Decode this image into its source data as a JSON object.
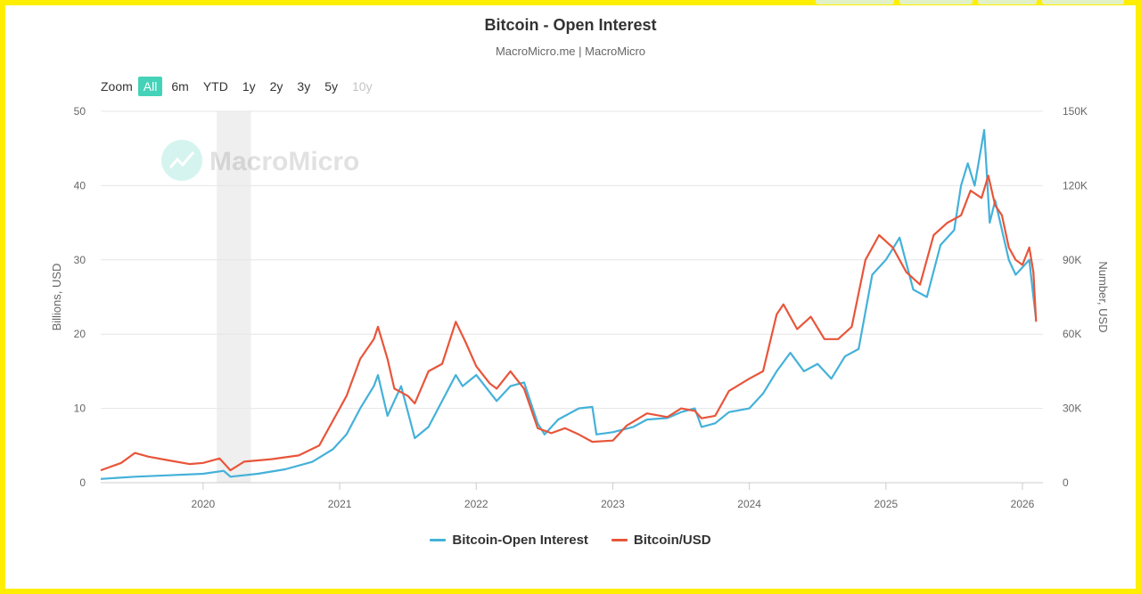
{
  "chart_data": {
    "type": "line",
    "title": "Bitcoin - Open Interest",
    "subtitle": "MacroMicro.me | MacroMicro",
    "watermark": "MacroMicro",
    "zoom": {
      "label": "Zoom",
      "buttons": [
        "All",
        "6m",
        "YTD",
        "1y",
        "2y",
        "3y",
        "5y",
        "10y"
      ],
      "active": "All",
      "disabled": [
        "10y"
      ]
    },
    "x_ticks": [
      "2020",
      "2021",
      "2022",
      "2023",
      "2024",
      "2025",
      "2026"
    ],
    "xlim": [
      2019.25,
      2026.15
    ],
    "y_left": {
      "label": "Billions, USD",
      "lim": [
        0,
        50
      ],
      "ticks": [
        "0",
        "10",
        "20",
        "30",
        "40",
        "50"
      ]
    },
    "y_right": {
      "label": "Number, USD",
      "lim": [
        0,
        150000
      ],
      "ticks": [
        "0",
        "30K",
        "60K",
        "90K",
        "120K",
        "150K"
      ]
    },
    "shaded_region": [
      2020.1,
      2020.35
    ],
    "series": [
      {
        "name": "Bitcoin-Open Interest",
        "axis": "left",
        "color": "#44b1d9",
        "points": [
          [
            2019.25,
            0.5
          ],
          [
            2019.5,
            0.8
          ],
          [
            2019.75,
            1.0
          ],
          [
            2020.0,
            1.2
          ],
          [
            2020.15,
            1.6
          ],
          [
            2020.2,
            0.8
          ],
          [
            2020.4,
            1.2
          ],
          [
            2020.6,
            1.8
          ],
          [
            2020.8,
            2.8
          ],
          [
            2020.95,
            4.5
          ],
          [
            2021.05,
            6.5
          ],
          [
            2021.15,
            10.0
          ],
          [
            2021.25,
            13.0
          ],
          [
            2021.28,
            14.5
          ],
          [
            2021.35,
            9.0
          ],
          [
            2021.45,
            13.0
          ],
          [
            2021.55,
            6.0
          ],
          [
            2021.65,
            7.5
          ],
          [
            2021.75,
            11.0
          ],
          [
            2021.85,
            14.5
          ],
          [
            2021.9,
            13.0
          ],
          [
            2022.0,
            14.5
          ],
          [
            2022.15,
            11.0
          ],
          [
            2022.25,
            13.0
          ],
          [
            2022.35,
            13.5
          ],
          [
            2022.45,
            8.0
          ],
          [
            2022.5,
            6.5
          ],
          [
            2022.6,
            8.5
          ],
          [
            2022.75,
            10.0
          ],
          [
            2022.85,
            10.2
          ],
          [
            2022.88,
            6.5
          ],
          [
            2023.0,
            6.8
          ],
          [
            2023.15,
            7.5
          ],
          [
            2023.25,
            8.5
          ],
          [
            2023.4,
            8.7
          ],
          [
            2023.5,
            9.5
          ],
          [
            2023.6,
            10.0
          ],
          [
            2023.65,
            7.5
          ],
          [
            2023.75,
            8.0
          ],
          [
            2023.85,
            9.5
          ],
          [
            2024.0,
            10.0
          ],
          [
            2024.1,
            12.0
          ],
          [
            2024.2,
            15.0
          ],
          [
            2024.3,
            17.5
          ],
          [
            2024.4,
            15.0
          ],
          [
            2024.5,
            16.0
          ],
          [
            2024.6,
            14.0
          ],
          [
            2024.7,
            17.0
          ],
          [
            2024.8,
            18.0
          ],
          [
            2024.9,
            28.0
          ],
          [
            2025.0,
            30.0
          ],
          [
            2025.1,
            33.0
          ],
          [
            2025.2,
            26.0
          ],
          [
            2025.3,
            25.0
          ],
          [
            2025.4,
            32.0
          ],
          [
            2025.5,
            34.0
          ],
          [
            2025.55,
            40.0
          ],
          [
            2025.6,
            43.0
          ],
          [
            2025.65,
            40.0
          ],
          [
            2025.72,
            47.5
          ],
          [
            2025.76,
            35.0
          ],
          [
            2025.8,
            38.0
          ],
          [
            2025.9,
            30.0
          ],
          [
            2025.95,
            28.0
          ],
          [
            2026.05,
            30.0
          ],
          [
            2026.08,
            25.0
          ],
          [
            2026.1,
            22.0
          ]
        ]
      },
      {
        "name": "Bitcoin/USD",
        "axis": "right",
        "color": "#e8553a",
        "points": [
          [
            2019.25,
            5000
          ],
          [
            2019.4,
            8000
          ],
          [
            2019.5,
            12000
          ],
          [
            2019.6,
            10500
          ],
          [
            2019.75,
            9000
          ],
          [
            2019.9,
            7500
          ],
          [
            2020.0,
            8000
          ],
          [
            2020.12,
            9800
          ],
          [
            2020.2,
            5000
          ],
          [
            2020.3,
            8500
          ],
          [
            2020.5,
            9500
          ],
          [
            2020.7,
            11000
          ],
          [
            2020.85,
            15000
          ],
          [
            2020.95,
            25000
          ],
          [
            2021.05,
            35000
          ],
          [
            2021.15,
            50000
          ],
          [
            2021.25,
            58000
          ],
          [
            2021.28,
            63000
          ],
          [
            2021.35,
            50000
          ],
          [
            2021.4,
            38000
          ],
          [
            2021.5,
            35000
          ],
          [
            2021.55,
            32000
          ],
          [
            2021.65,
            45000
          ],
          [
            2021.75,
            48000
          ],
          [
            2021.85,
            65000
          ],
          [
            2021.92,
            57000
          ],
          [
            2022.0,
            47000
          ],
          [
            2022.1,
            40000
          ],
          [
            2022.15,
            38000
          ],
          [
            2022.25,
            45000
          ],
          [
            2022.35,
            38000
          ],
          [
            2022.45,
            22000
          ],
          [
            2022.55,
            20000
          ],
          [
            2022.65,
            22000
          ],
          [
            2022.75,
            19500
          ],
          [
            2022.85,
            16500
          ],
          [
            2023.0,
            17000
          ],
          [
            2023.1,
            23000
          ],
          [
            2023.25,
            28000
          ],
          [
            2023.4,
            26500
          ],
          [
            2023.5,
            30000
          ],
          [
            2023.6,
            29000
          ],
          [
            2023.65,
            26000
          ],
          [
            2023.75,
            27000
          ],
          [
            2023.85,
            37000
          ],
          [
            2024.0,
            42000
          ],
          [
            2024.1,
            45000
          ],
          [
            2024.2,
            68000
          ],
          [
            2024.25,
            72000
          ],
          [
            2024.35,
            62000
          ],
          [
            2024.45,
            67000
          ],
          [
            2024.55,
            58000
          ],
          [
            2024.65,
            58000
          ],
          [
            2024.75,
            63000
          ],
          [
            2024.85,
            90000
          ],
          [
            2024.95,
            100000
          ],
          [
            2025.05,
            95000
          ],
          [
            2025.15,
            85000
          ],
          [
            2025.25,
            80000
          ],
          [
            2025.35,
            100000
          ],
          [
            2025.45,
            105000
          ],
          [
            2025.55,
            108000
          ],
          [
            2025.62,
            118000
          ],
          [
            2025.7,
            115000
          ],
          [
            2025.75,
            124000
          ],
          [
            2025.8,
            112000
          ],
          [
            2025.85,
            108000
          ],
          [
            2025.9,
            95000
          ],
          [
            2025.95,
            90000
          ],
          [
            2026.0,
            88000
          ],
          [
            2026.05,
            95000
          ],
          [
            2026.08,
            85000
          ],
          [
            2026.1,
            65000
          ]
        ]
      }
    ]
  }
}
